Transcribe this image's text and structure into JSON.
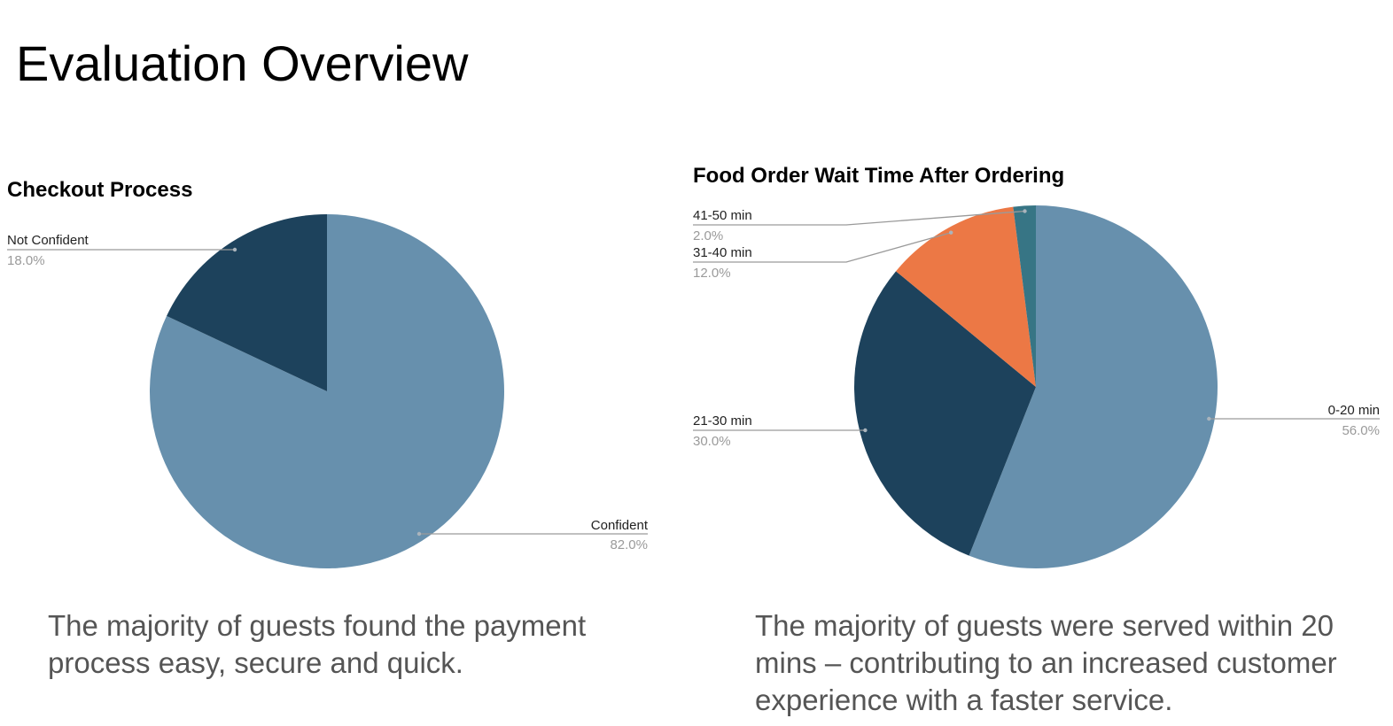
{
  "page": {
    "title": "Evaluation Overview",
    "caption_left": "The majority of guests found the payment process easy, secure and quick.",
    "caption_right": "The majority of guests were served within 20 mins – contributing to an increased customer experience with a faster service."
  },
  "chart_data": [
    {
      "type": "pie",
      "title": "Checkout Process",
      "slices": [
        {
          "label": "Confident",
          "value": 82.0,
          "pct_label": "82.0%",
          "color": "#6790AD"
        },
        {
          "label": "Not Confident",
          "value": 18.0,
          "pct_label": "18.0%",
          "color": "#1D425C"
        }
      ]
    },
    {
      "type": "pie",
      "title": "Food Order Wait Time After Ordering",
      "slices": [
        {
          "label": "0-20 min",
          "value": 56.0,
          "pct_label": "56.0%",
          "color": "#6790AD"
        },
        {
          "label": "21-30 min",
          "value": 30.0,
          "pct_label": "30.0%",
          "color": "#1D425C"
        },
        {
          "label": "31-40 min",
          "value": 12.0,
          "pct_label": "12.0%",
          "color": "#EC7845"
        },
        {
          "label": "41-50 min",
          "value": 2.0,
          "pct_label": "2.0%",
          "color": "#377585"
        }
      ]
    }
  ]
}
